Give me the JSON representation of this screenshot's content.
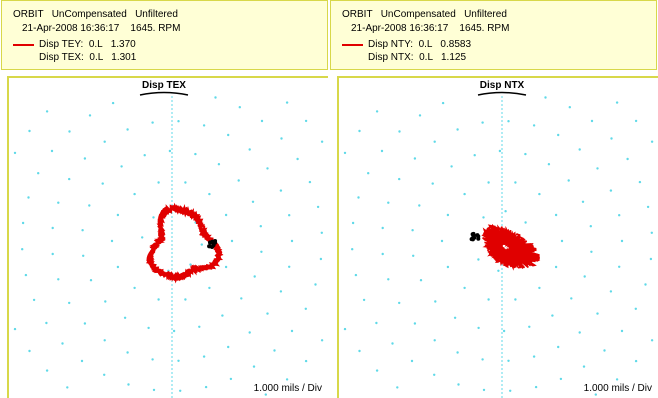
{
  "panels": [
    {
      "header": {
        "mode": "ORBIT   UnCompensated   Unfiltered",
        "timestamp": "21-Apr-2008 16:36:17    1645. RPM",
        "legend1": "Disp TEY:  0.L   1.370",
        "legend2": "Disp TEX:  0.L   1.301"
      },
      "plot_title": "Disp TEX",
      "scale_label": "1.000 mils / Div"
    },
    {
      "header": {
        "mode": "ORBIT   UnCompensated   Unfiltered",
        "timestamp": "21-Apr-2008 16:36:17    1645. RPM",
        "legend1": "Disp NTY:  0.L   0.8583",
        "legend2": "Disp NTX:  0.L   1.125"
      },
      "plot_title": "Disp NTX",
      "scale_label": "1.000 mils / Div"
    }
  ],
  "colors": {
    "orbit": "#e00000",
    "keyphasor": "#000000",
    "grid_dots": "#5fd9e8",
    "header_bg": "#ffffd6",
    "border": "#d8d84a"
  },
  "chart_data": [
    {
      "type": "scatter",
      "title": "Disp TEX",
      "scale": "1.000 mils / Div",
      "series": [
        {
          "name": "Disp TEY",
          "shape": "orbit-loop",
          "center": [
            0.35,
            -0.15
          ],
          "radius_x": 1.0,
          "radius_y": 1.1,
          "keyphasor": [
            1.35,
            -0.1
          ]
        }
      ]
    },
    {
      "type": "scatter",
      "title": "Disp NTX",
      "scale": "1.000 mils / Div",
      "series": [
        {
          "name": "Disp NTY",
          "shape": "orbit-blob",
          "center": [
            0.1,
            -0.2
          ],
          "radius_x": 0.95,
          "radius_y": 0.65,
          "keyphasor": [
            -0.9,
            0.15
          ]
        }
      ]
    }
  ]
}
